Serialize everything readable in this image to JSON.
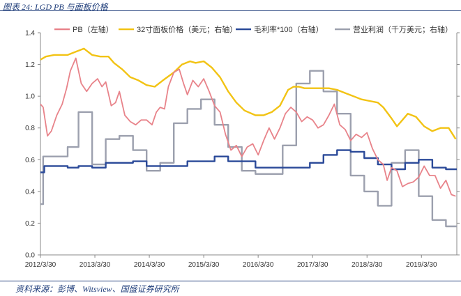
{
  "caption": "图表 24: LGD PB 与面板价格",
  "source": "资料来源：彭博、Witsview、国盛证券研究所",
  "chart_data": {
    "type": "line",
    "title": "LGD PB 与面板价格",
    "ylim": [
      0,
      1.4
    ],
    "yticks": [
      "0.0",
      "0.2",
      "0.4",
      "0.6",
      "0.8",
      "1.0",
      "1.2",
      "1.4"
    ],
    "x_tick_labels": [
      "2012/3/30",
      "2013/3/30",
      "2014/3/30",
      "2015/3/30",
      "2016/3/30",
      "2017/3/30",
      "2018/3/30",
      "2019/3/30"
    ],
    "x_range_years": [
      2012.25,
      2019.9
    ],
    "series": [
      {
        "name": "PB（左轴）",
        "color": "#e8838a",
        "style": "line",
        "x": [
          2012.25,
          2012.3,
          2012.38,
          2012.45,
          2012.55,
          2012.65,
          2012.73,
          2012.8,
          2012.9,
          2013.0,
          2013.1,
          2013.2,
          2013.3,
          2013.38,
          2013.45,
          2013.55,
          2013.63,
          2013.7,
          2013.8,
          2013.9,
          2014.0,
          2014.1,
          2014.2,
          2014.3,
          2014.38,
          2014.45,
          2014.53,
          2014.6,
          2014.7,
          2014.8,
          2014.88,
          2014.95,
          2015.05,
          2015.15,
          2015.25,
          2015.35,
          2015.45,
          2015.55,
          2015.65,
          2015.75,
          2015.85,
          2015.95,
          2016.05,
          2016.15,
          2016.25,
          2016.35,
          2016.45,
          2016.55,
          2016.65,
          2016.75,
          2016.85,
          2016.95,
          2017.05,
          2017.15,
          2017.25,
          2017.35,
          2017.45,
          2017.55,
          2017.65,
          2017.75,
          2017.85,
          2017.95,
          2018.05,
          2018.15,
          2018.25,
          2018.35,
          2018.45,
          2018.55,
          2018.62,
          2018.7,
          2018.8,
          2018.9,
          2019.0,
          2019.1,
          2019.2,
          2019.3,
          2019.4,
          2019.5,
          2019.6,
          2019.7,
          2019.8,
          2019.88
        ],
        "values": [
          0.95,
          0.93,
          0.75,
          0.78,
          0.88,
          0.95,
          1.05,
          1.16,
          1.24,
          1.08,
          1.03,
          1.08,
          1.11,
          1.06,
          1.09,
          0.94,
          0.96,
          1.03,
          0.88,
          0.84,
          0.82,
          0.85,
          0.85,
          0.82,
          0.9,
          0.93,
          0.92,
          1.06,
          1.15,
          1.17,
          1.08,
          1.01,
          1.1,
          1.06,
          1.11,
          1.03,
          0.94,
          0.9,
          0.76,
          0.66,
          0.69,
          0.62,
          0.68,
          0.7,
          0.63,
          0.72,
          0.8,
          0.73,
          0.8,
          0.89,
          0.93,
          0.9,
          0.84,
          0.87,
          0.85,
          0.8,
          0.82,
          0.88,
          0.95,
          0.82,
          0.79,
          0.72,
          0.76,
          0.74,
          0.77,
          0.67,
          0.6,
          0.57,
          0.47,
          0.55,
          0.53,
          0.43,
          0.45,
          0.46,
          0.49,
          0.56,
          0.5,
          0.5,
          0.42,
          0.47,
          0.38,
          0.37
        ]
      },
      {
        "name": "32寸面板价格（美元；右轴）",
        "color": "#f2c314",
        "style": "line",
        "x": [
          2012.25,
          2012.35,
          2012.5,
          2012.75,
          2012.9,
          2013.05,
          2013.2,
          2013.35,
          2013.5,
          2013.6,
          2013.75,
          2013.9,
          2014.05,
          2014.2,
          2014.35,
          2014.5,
          2014.7,
          2014.85,
          2015.0,
          2015.1,
          2015.25,
          2015.4,
          2015.55,
          2015.7,
          2015.85,
          2016.0,
          2016.2,
          2016.35,
          2016.5,
          2016.65,
          2016.8,
          2016.9,
          2017.0,
          2017.1,
          2017.25,
          2017.4,
          2017.55,
          2017.7,
          2017.85,
          2018.0,
          2018.15,
          2018.3,
          2018.45,
          2018.55,
          2018.7,
          2018.8,
          2018.9,
          2019.0,
          2019.15,
          2019.3,
          2019.45,
          2019.6,
          2019.75,
          2019.88
        ],
        "values": [
          1.23,
          1.25,
          1.26,
          1.26,
          1.28,
          1.3,
          1.26,
          1.25,
          1.25,
          1.21,
          1.17,
          1.12,
          1.1,
          1.07,
          1.06,
          1.1,
          1.15,
          1.2,
          1.22,
          1.21,
          1.22,
          1.18,
          1.12,
          1.03,
          0.96,
          0.91,
          0.88,
          0.88,
          0.9,
          0.94,
          1.04,
          1.06,
          1.06,
          1.05,
          1.05,
          1.05,
          1.05,
          1.04,
          1.02,
          1.0,
          0.98,
          0.97,
          0.96,
          0.93,
          0.86,
          0.81,
          0.85,
          0.89,
          0.87,
          0.81,
          0.78,
          0.8,
          0.8,
          0.73
        ]
      },
      {
        "name": "毛利率*100（右轴）",
        "color": "#2b4a99",
        "style": "step",
        "x": [
          2012.25,
          2012.32,
          2012.5,
          2012.75,
          2012.95,
          2013.2,
          2013.45,
          2013.7,
          2013.95,
          2014.2,
          2014.45,
          2014.7,
          2014.95,
          2015.2,
          2015.45,
          2015.7,
          2015.95,
          2016.2,
          2016.45,
          2016.7,
          2016.95,
          2017.2,
          2017.45,
          2017.7,
          2017.95,
          2018.2,
          2018.45,
          2018.7,
          2018.95,
          2019.2,
          2019.45,
          2019.7
        ],
        "values": [
          0.52,
          0.56,
          0.56,
          0.55,
          0.56,
          0.55,
          0.58,
          0.58,
          0.59,
          0.56,
          0.56,
          0.56,
          0.59,
          0.59,
          0.62,
          0.59,
          0.59,
          0.55,
          0.55,
          0.55,
          0.55,
          0.58,
          0.63,
          0.66,
          0.65,
          0.61,
          0.57,
          0.54,
          0.58,
          0.6,
          0.55,
          0.54
        ]
      },
      {
        "name": "营业利润（千万美元；右轴）",
        "color": "#9ca0ae",
        "style": "step",
        "x": [
          2012.25,
          2012.3,
          2012.5,
          2012.75,
          2012.95,
          2013.2,
          2013.45,
          2013.7,
          2013.95,
          2014.2,
          2014.45,
          2014.7,
          2014.95,
          2015.2,
          2015.45,
          2015.7,
          2015.95,
          2016.2,
          2016.45,
          2016.7,
          2016.95,
          2017.2,
          2017.45,
          2017.7,
          2017.95,
          2018.2,
          2018.45,
          2018.7,
          2018.95,
          2019.2,
          2019.45,
          2019.7
        ],
        "values": [
          0.32,
          0.62,
          0.62,
          0.68,
          0.9,
          0.57,
          0.73,
          0.75,
          0.66,
          0.53,
          0.58,
          0.83,
          0.92,
          0.98,
          0.82,
          0.68,
          0.53,
          0.51,
          0.51,
          0.69,
          1.08,
          1.16,
          1.03,
          0.89,
          0.5,
          0.4,
          0.31,
          0.58,
          0.66,
          0.37,
          0.22,
          0.18
        ]
      }
    ],
    "legend": [
      "PB（左轴）",
      "32寸面板价格（美元；右轴）",
      "毛利率*100（右轴）",
      "营业利润（千万美元；右轴）"
    ]
  }
}
